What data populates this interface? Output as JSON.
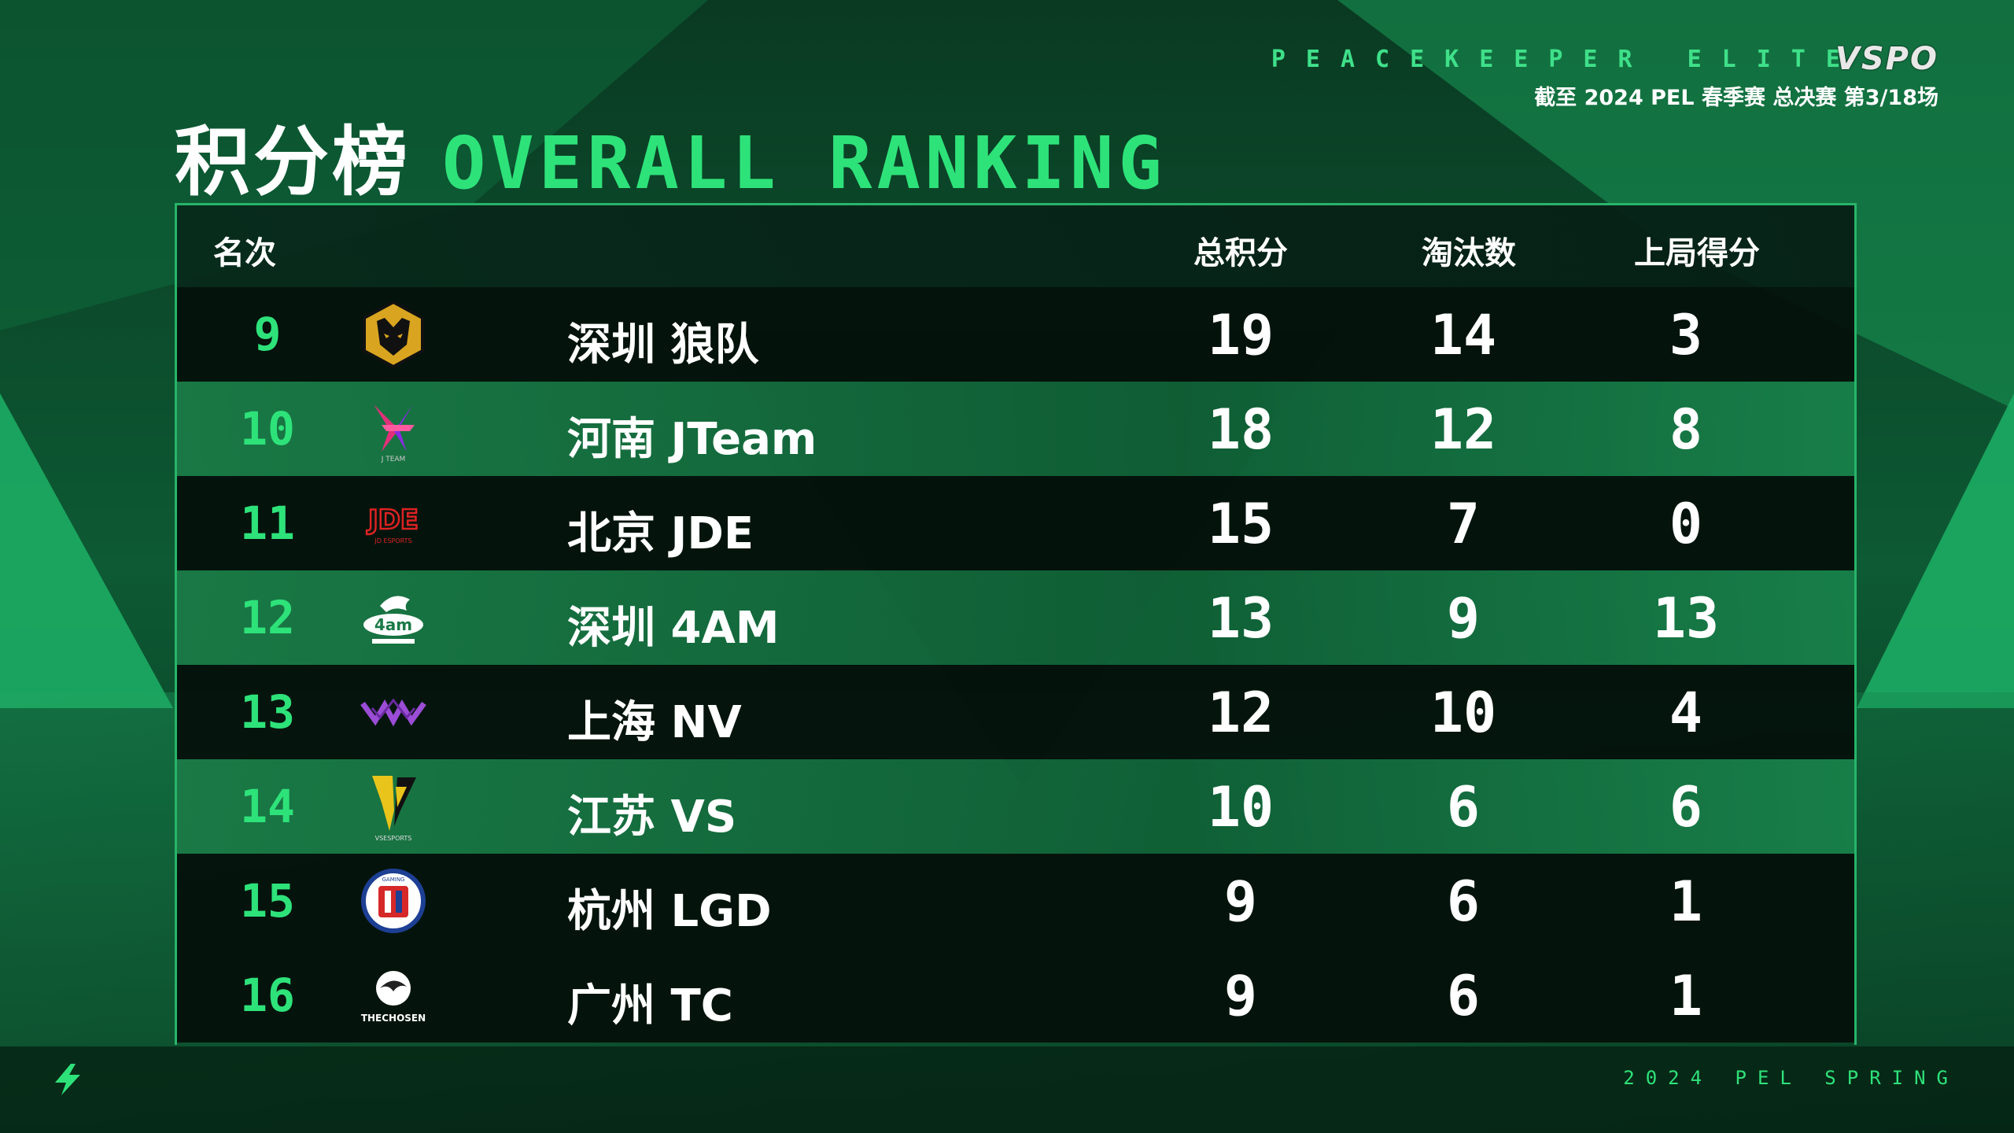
{
  "header": {
    "tagline": "PEACEKEEPER ELITE",
    "brand": "VSPO",
    "subtitle": "截至 2024 PEL 春季赛 总决赛 第3/18场",
    "title_cn": "积分榜",
    "title_en": "OVERALL RANKING"
  },
  "table": {
    "columns": {
      "rank": "名次",
      "total": "总积分",
      "kills": "淘汰数",
      "last": "上局得分"
    },
    "rows": [
      {
        "rank": "9",
        "team": "深圳 狼队",
        "logo": "wolves-logo",
        "total": "19",
        "kills": "14",
        "last": "3"
      },
      {
        "rank": "10",
        "team": "河南 JTeam",
        "logo": "jteam-logo",
        "total": "18",
        "kills": "12",
        "last": "8"
      },
      {
        "rank": "11",
        "team": "北京 JDE",
        "logo": "jde-logo",
        "total": "15",
        "kills": "7",
        "last": "0"
      },
      {
        "rank": "12",
        "team": "深圳 4AM",
        "logo": "4am-logo",
        "total": "13",
        "kills": "9",
        "last": "13"
      },
      {
        "rank": "13",
        "team": "上海 NV",
        "logo": "nv-logo",
        "total": "12",
        "kills": "10",
        "last": "4"
      },
      {
        "rank": "14",
        "team": "江苏 VS",
        "logo": "vs-logo",
        "total": "10",
        "kills": "6",
        "last": "6"
      },
      {
        "rank": "15",
        "team": "杭州 LGD",
        "logo": "lgd-logo",
        "total": "9",
        "kills": "6",
        "last": "1"
      },
      {
        "rank": "16",
        "team": "广州 TC",
        "logo": "tc-logo",
        "total": "9",
        "kills": "6",
        "last": "1"
      }
    ]
  },
  "footer": {
    "text": "2024 PEL SPRING"
  },
  "colors": {
    "accent": "#2ee27a",
    "border": "#28b46a",
    "background": "#061a10"
  }
}
